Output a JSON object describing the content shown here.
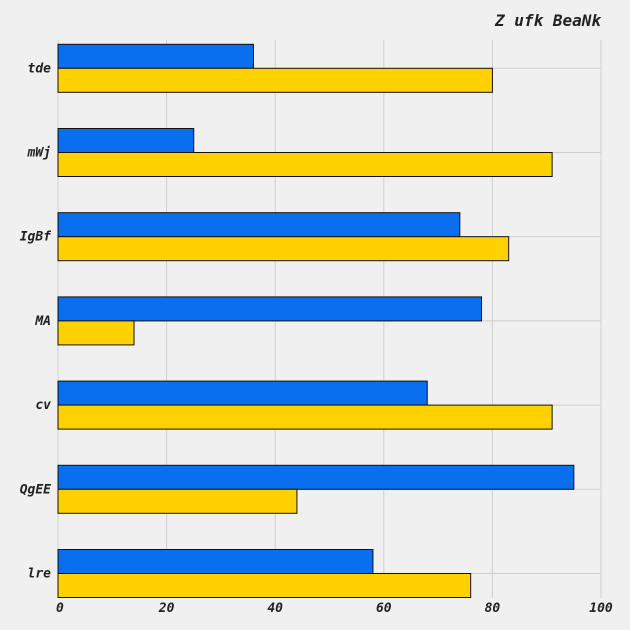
{
  "chart_data": {
    "type": "bar",
    "orientation": "horizontal",
    "title": "Z ufk BeaNk",
    "xlabel": "",
    "ylabel": "",
    "categories": [
      "tde",
      "mWj",
      "IgBf",
      "MA",
      "cv",
      "QgEE",
      "lre"
    ],
    "series": [
      {
        "color": "#0a6fef",
        "values": [
          36,
          25,
          74,
          78,
          68,
          95,
          58
        ]
      },
      {
        "color": "#ffd100",
        "values": [
          80,
          91,
          83,
          14,
          91,
          44,
          76
        ]
      }
    ],
    "xlim": [
      0,
      100
    ],
    "xticks": [
      0,
      20,
      40,
      60,
      80,
      100
    ],
    "grid": true,
    "legend": "none"
  }
}
